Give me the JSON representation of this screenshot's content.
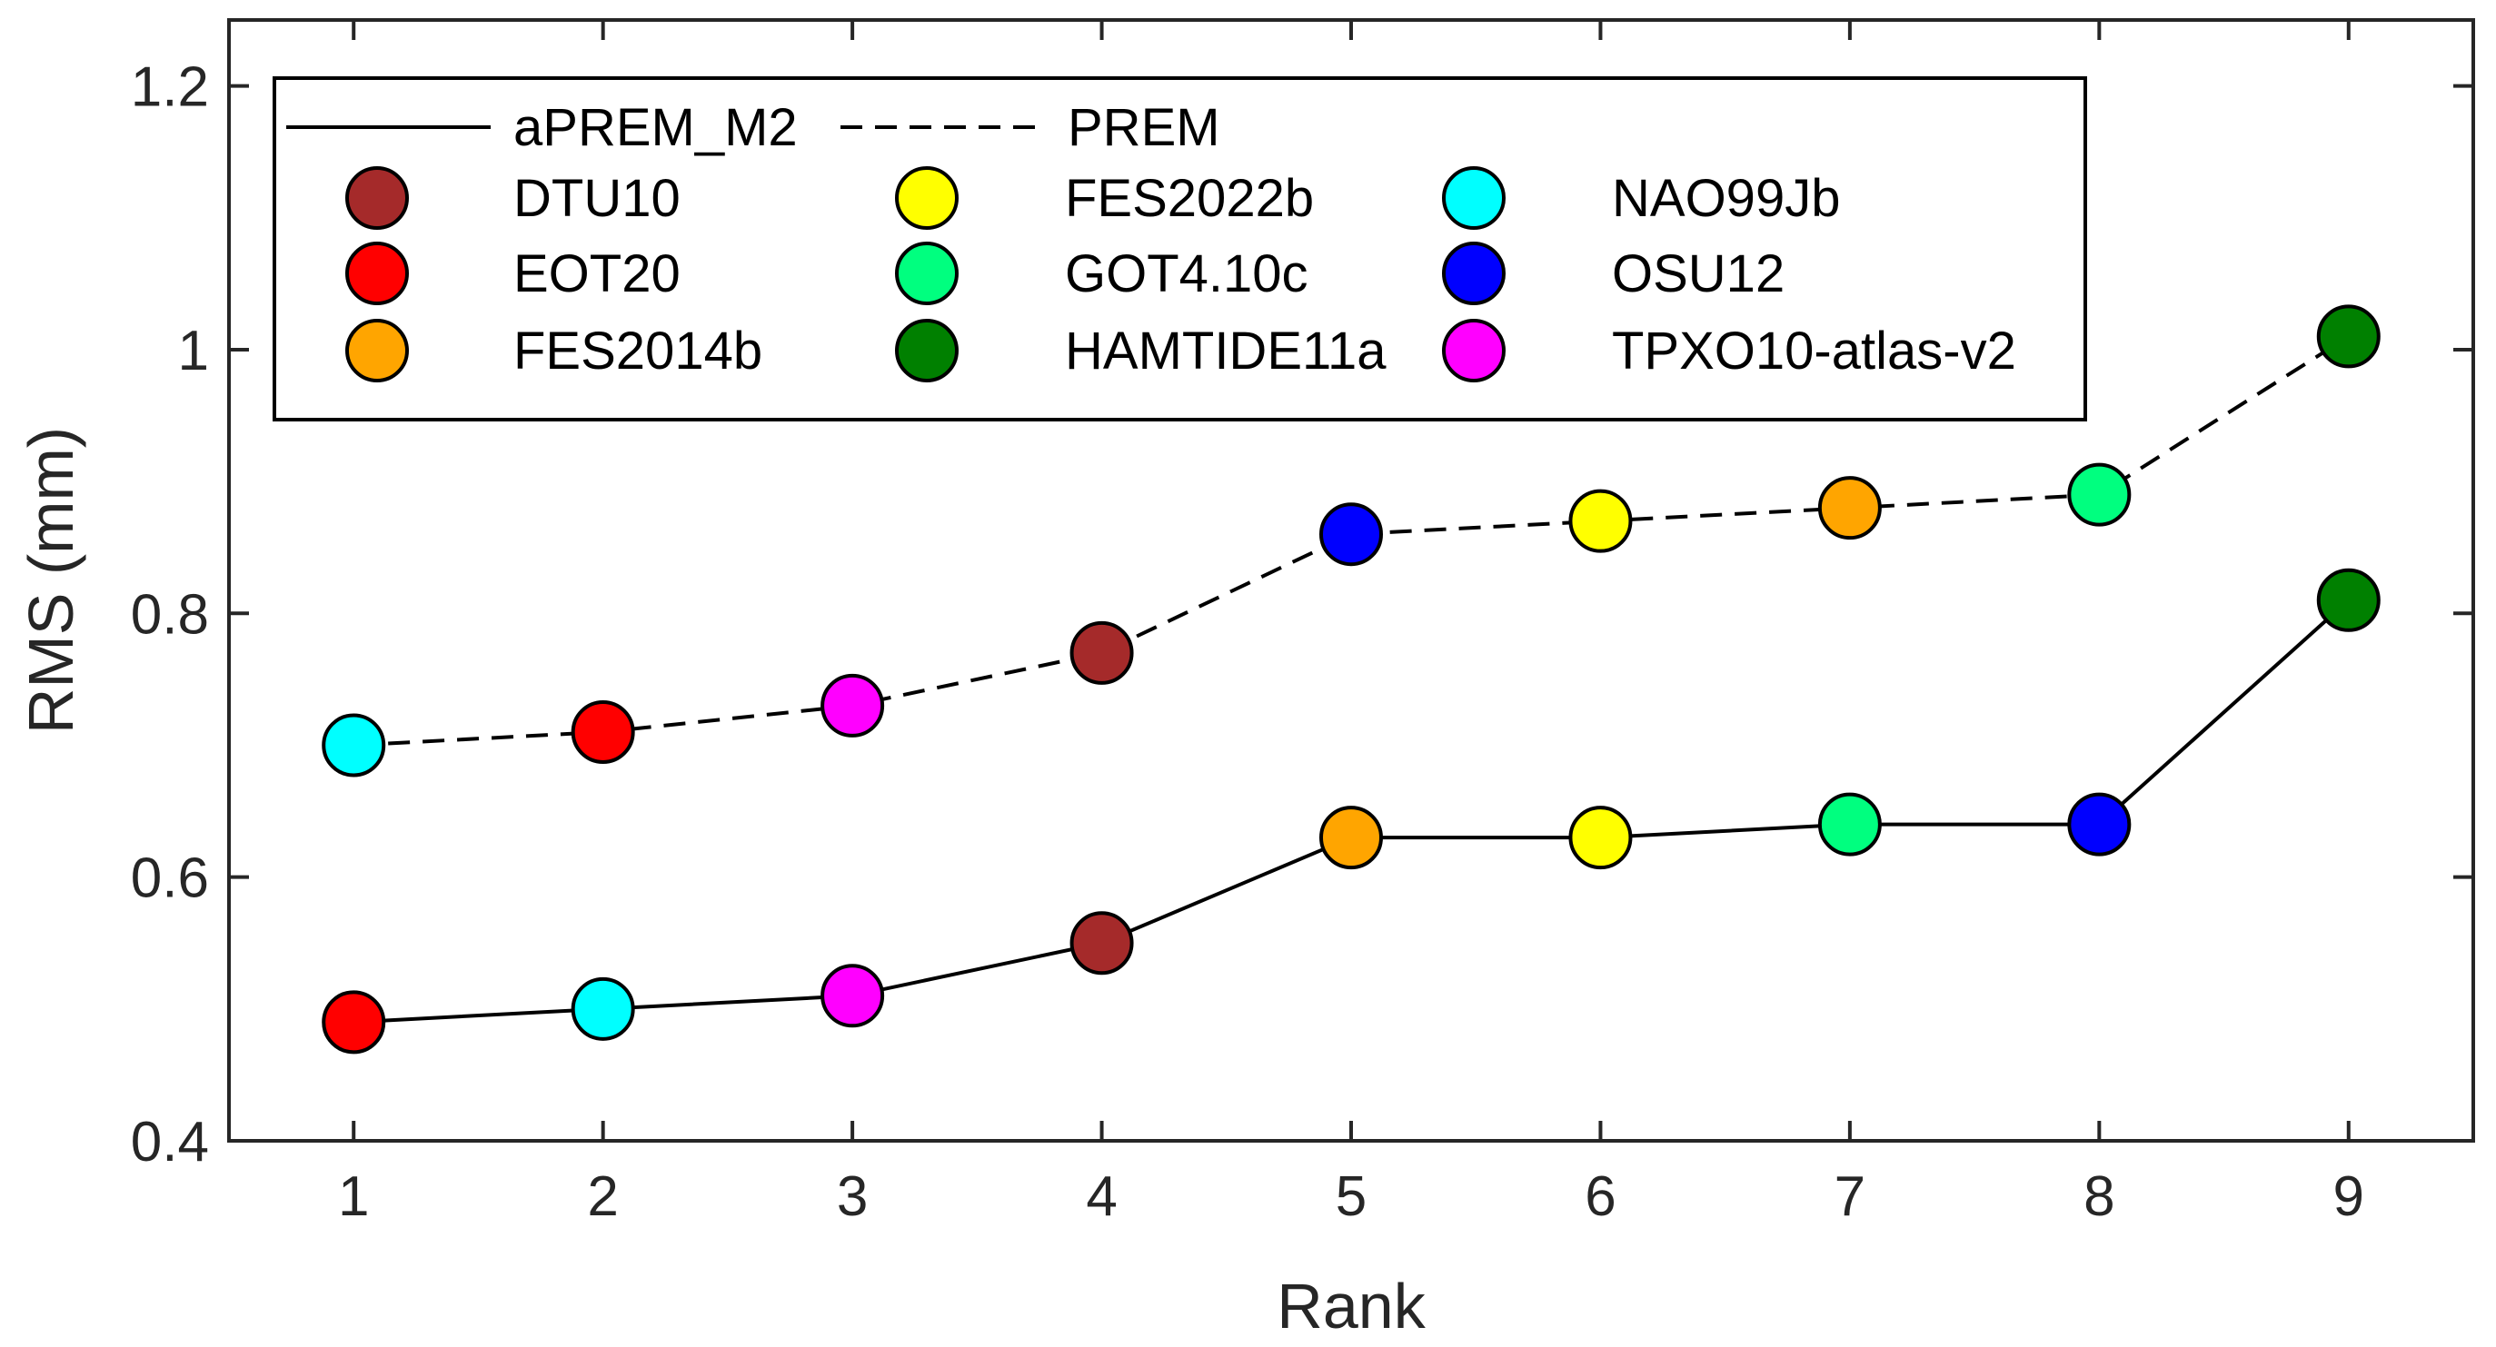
{
  "chart_data": {
    "type": "line",
    "title": "",
    "xlabel": "Rank",
    "ylabel": "RMS (mm)",
    "xlim": [
      0.5,
      9.5
    ],
    "ylim": [
      0.4,
      1.25
    ],
    "xticks": [
      1,
      2,
      3,
      4,
      5,
      6,
      7,
      8,
      9
    ],
    "xtick_labels": [
      "1",
      "2",
      "3",
      "4",
      "5",
      "6",
      "7",
      "8",
      "9"
    ],
    "yticks": [
      0.4,
      0.6,
      0.8,
      1.0,
      1.2
    ],
    "ytick_labels": [
      "0.4",
      "0.6",
      "0.8",
      "1",
      "1.2"
    ],
    "grid": false,
    "legend_position": "top-left",
    "series": [
      {
        "name": "aPREM_M2",
        "style": "solid",
        "x": [
          1,
          2,
          3,
          4,
          5,
          6,
          7,
          8,
          9
        ],
        "values": [
          0.49,
          0.5,
          0.51,
          0.55,
          0.63,
          0.63,
          0.64,
          0.64,
          0.81
        ],
        "models": [
          "EOT20",
          "NAO99Jb",
          "TPXO10-atlas-v2",
          "DTU10",
          "FES2014b",
          "FES2022b",
          "GOT4.10c",
          "OSU12",
          "HAMTIDE11a"
        ]
      },
      {
        "name": "PREM",
        "style": "dashed",
        "x": [
          1,
          2,
          3,
          4,
          5,
          6,
          7,
          8,
          9
        ],
        "values": [
          0.7,
          0.71,
          0.73,
          0.77,
          0.86,
          0.87,
          0.88,
          0.89,
          1.01
        ],
        "models": [
          "NAO99Jb",
          "EOT20",
          "TPXO10-atlas-v2",
          "DTU10",
          "OSU12",
          "FES2022b",
          "FES2014b",
          "GOT4.10c",
          "HAMTIDE11a"
        ]
      }
    ],
    "models": [
      {
        "name": "DTU10",
        "color": "#a52a2a"
      },
      {
        "name": "EOT20",
        "color": "#ff0000"
      },
      {
        "name": "FES2014b",
        "color": "#ffa500"
      },
      {
        "name": "FES2022b",
        "color": "#ffff00"
      },
      {
        "name": "GOT4.10c",
        "color": "#00ff7f"
      },
      {
        "name": "HAMTIDE11a",
        "color": "#008000"
      },
      {
        "name": "NAO99Jb",
        "color": "#00ffff"
      },
      {
        "name": "OSU12",
        "color": "#0000ff"
      },
      {
        "name": "TPXO10-atlas-v2",
        "color": "#ff00ff"
      }
    ]
  }
}
